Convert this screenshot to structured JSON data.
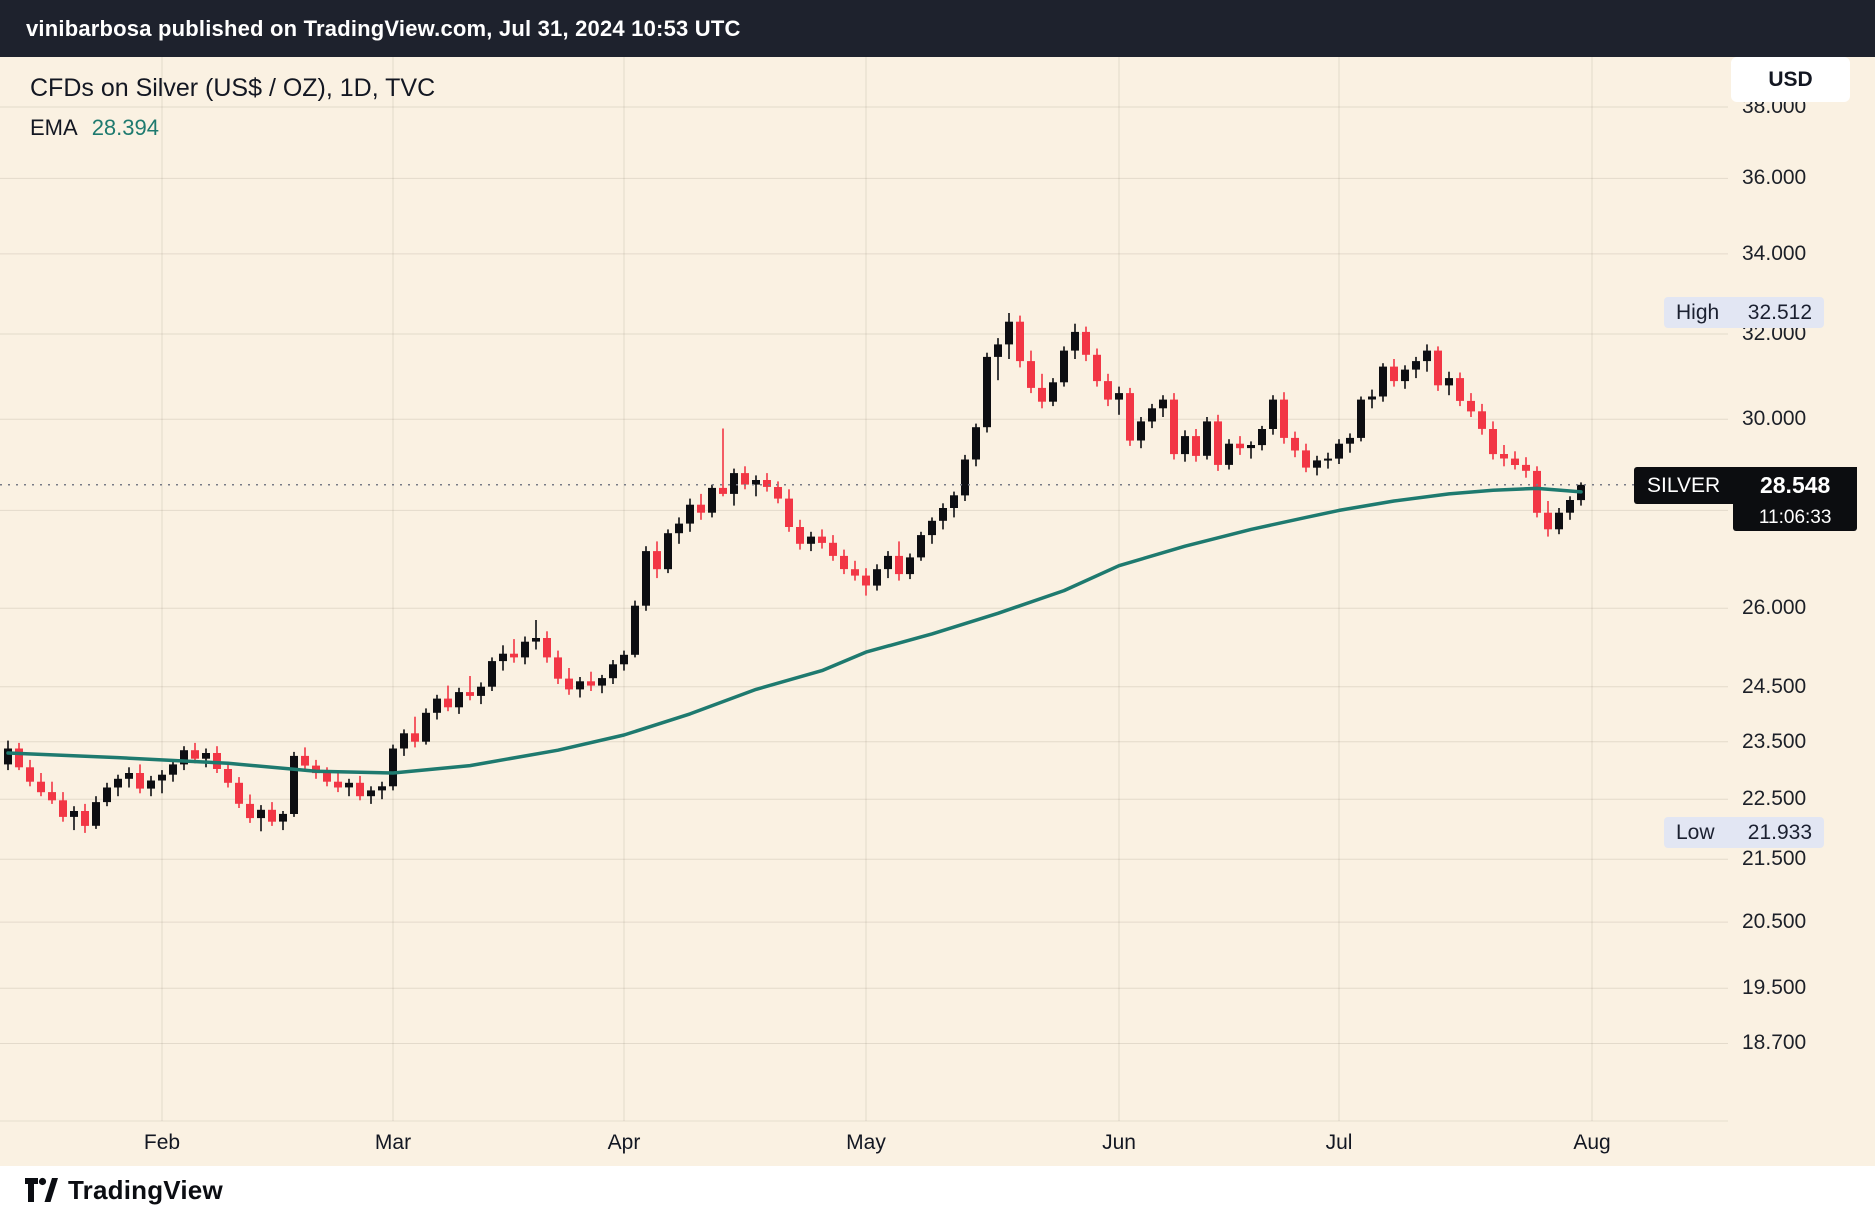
{
  "header": {
    "published_line": "vinibarbosa published on TradingView.com, Jul 31, 2024 10:53 UTC"
  },
  "legend": {
    "title": "CFDs on Silver (US$ / OZ), 1D, TVC",
    "indicator": {
      "name": "EMA",
      "value": "28.394"
    }
  },
  "price_axis": {
    "currency_button": "USD"
  },
  "badges": {
    "high": {
      "label": "High",
      "value": "32.512",
      "price": 32.512
    },
    "low": {
      "label": "Low",
      "value": "21.933",
      "price": 21.933
    },
    "last": {
      "symbol": "SILVER",
      "value": "28.548",
      "price": 28.548,
      "countdown": "11:06:33"
    }
  },
  "time_axis": {
    "months": [
      {
        "label": "Feb",
        "index": 14
      },
      {
        "label": "Mar",
        "index": 35
      },
      {
        "label": "Apr",
        "index": 56
      },
      {
        "label": "May",
        "index": 78
      },
      {
        "label": "Jun",
        "index": 101
      },
      {
        "label": "Jul",
        "index": 121
      },
      {
        "label": "Aug",
        "index": 144
      }
    ]
  },
  "footer": {
    "brand": "TradingView"
  },
  "theme": {
    "background": "#faf1e2",
    "topbar_bg": "#1e222d",
    "footer_bg": "#ffffff",
    "badge_bg": "#e2e6f3",
    "axis_text": "#1c2028"
  },
  "chart_data": {
    "type": "candlestick",
    "title": "CFDs on Silver (US$ / OZ), 1D, TVC",
    "symbol": "SILVER",
    "exchange": "TVC",
    "timeframe": "1D",
    "scale": "log",
    "ylim": [
      17.6,
      39.5
    ],
    "high": 32.512,
    "low": 21.933,
    "last_close": 28.548,
    "ema_last": 28.394,
    "price_gridlines": [
      38,
      36,
      34,
      32,
      30,
      28,
      26,
      24.5,
      23.5,
      22.5,
      21.5,
      20.5,
      19.5,
      18.7
    ],
    "colors": {
      "up": "#0d0e12",
      "down": "#f23645",
      "ema": "#1e7a6f",
      "last_price_line": "#787b86"
    },
    "candles": [
      [
        23.1,
        23.52,
        23.0,
        23.38
      ],
      [
        23.38,
        23.48,
        23.0,
        23.05
      ],
      [
        23.05,
        23.18,
        22.72,
        22.8
      ],
      [
        22.8,
        22.95,
        22.55,
        22.62
      ],
      [
        22.62,
        22.8,
        22.42,
        22.48
      ],
      [
        22.48,
        22.62,
        22.12,
        22.2
      ],
      [
        22.2,
        22.38,
        21.98,
        22.3
      ],
      [
        22.3,
        22.42,
        21.933,
        22.05
      ],
      [
        22.05,
        22.55,
        22.0,
        22.45
      ],
      [
        22.45,
        22.78,
        22.38,
        22.7
      ],
      [
        22.7,
        22.92,
        22.55,
        22.85
      ],
      [
        22.85,
        23.05,
        22.7,
        22.95
      ],
      [
        22.95,
        23.1,
        22.6,
        22.68
      ],
      [
        22.68,
        22.9,
        22.55,
        22.82
      ],
      [
        22.82,
        23.0,
        22.6,
        22.92
      ],
      [
        22.92,
        23.15,
        22.8,
        23.1
      ],
      [
        23.1,
        23.42,
        23.0,
        23.35
      ],
      [
        23.35,
        23.48,
        23.12,
        23.2
      ],
      [
        23.2,
        23.38,
        23.05,
        23.3
      ],
      [
        23.3,
        23.42,
        22.95,
        23.02
      ],
      [
        23.02,
        23.12,
        22.7,
        22.78
      ],
      [
        22.78,
        22.88,
        22.35,
        22.42
      ],
      [
        22.42,
        22.58,
        22.1,
        22.18
      ],
      [
        22.18,
        22.4,
        21.96,
        22.32
      ],
      [
        22.32,
        22.45,
        22.05,
        22.12
      ],
      [
        22.12,
        22.3,
        21.98,
        22.25
      ],
      [
        22.25,
        23.32,
        22.2,
        23.25
      ],
      [
        23.25,
        23.4,
        23.0,
        23.08
      ],
      [
        23.08,
        23.18,
        22.85,
        22.95
      ],
      [
        22.95,
        23.05,
        22.72,
        22.8
      ],
      [
        22.8,
        22.95,
        22.62,
        22.7
      ],
      [
        22.7,
        22.85,
        22.55,
        22.78
      ],
      [
        22.78,
        22.9,
        22.48,
        22.55
      ],
      [
        22.55,
        22.72,
        22.42,
        22.65
      ],
      [
        22.65,
        22.8,
        22.5,
        22.72
      ],
      [
        22.72,
        23.45,
        22.65,
        23.38
      ],
      [
        23.38,
        23.72,
        23.25,
        23.65
      ],
      [
        23.65,
        23.95,
        23.4,
        23.5
      ],
      [
        23.5,
        24.1,
        23.45,
        24.02
      ],
      [
        24.02,
        24.35,
        23.9,
        24.28
      ],
      [
        24.28,
        24.52,
        24.05,
        24.12
      ],
      [
        24.12,
        24.48,
        24.0,
        24.4
      ],
      [
        24.4,
        24.7,
        24.25,
        24.33
      ],
      [
        24.33,
        24.58,
        24.18,
        24.5
      ],
      [
        24.5,
        25.05,
        24.42,
        24.98
      ],
      [
        24.98,
        25.28,
        24.8,
        25.12
      ],
      [
        25.12,
        25.4,
        24.95,
        25.05
      ],
      [
        25.05,
        25.45,
        24.92,
        25.35
      ],
      [
        25.35,
        25.77,
        25.2,
        25.42
      ],
      [
        25.42,
        25.55,
        24.95,
        25.05
      ],
      [
        25.05,
        25.18,
        24.55,
        24.65
      ],
      [
        24.65,
        24.85,
        24.35,
        24.45
      ],
      [
        24.45,
        24.68,
        24.3,
        24.6
      ],
      [
        24.6,
        24.78,
        24.42,
        24.52
      ],
      [
        24.52,
        24.72,
        24.38,
        24.66
      ],
      [
        24.66,
        25.0,
        24.55,
        24.92
      ],
      [
        24.92,
        25.18,
        24.8,
        25.1
      ],
      [
        25.1,
        26.15,
        25.05,
        26.05
      ],
      [
        26.05,
        27.25,
        25.95,
        27.15
      ],
      [
        27.15,
        27.35,
        26.6,
        26.78
      ],
      [
        26.78,
        27.6,
        26.7,
        27.52
      ],
      [
        27.52,
        27.85,
        27.3,
        27.72
      ],
      [
        27.72,
        28.25,
        27.55,
        28.12
      ],
      [
        28.12,
        28.35,
        27.8,
        27.95
      ],
      [
        27.95,
        28.55,
        27.85,
        28.48
      ],
      [
        28.48,
        29.79,
        28.3,
        28.35
      ],
      [
        28.35,
        28.9,
        28.1,
        28.8
      ],
      [
        28.8,
        28.95,
        28.45,
        28.55
      ],
      [
        28.55,
        28.75,
        28.3,
        28.65
      ],
      [
        28.65,
        28.8,
        28.4,
        28.5
      ],
      [
        28.5,
        28.62,
        28.15,
        28.25
      ],
      [
        28.25,
        28.45,
        27.55,
        27.65
      ],
      [
        27.65,
        27.8,
        27.18,
        27.3
      ],
      [
        27.3,
        27.55,
        27.15,
        27.45
      ],
      [
        27.45,
        27.6,
        27.2,
        27.32
      ],
      [
        27.32,
        27.48,
        26.95,
        27.05
      ],
      [
        27.05,
        27.18,
        26.68,
        26.78
      ],
      [
        26.78,
        26.95,
        26.55,
        26.65
      ],
      [
        26.65,
        26.8,
        26.25,
        26.45
      ],
      [
        26.45,
        26.88,
        26.35,
        26.78
      ],
      [
        26.78,
        27.15,
        26.6,
        27.05
      ],
      [
        27.05,
        27.35,
        26.55,
        26.68
      ],
      [
        26.68,
        27.1,
        26.58,
        27.02
      ],
      [
        27.02,
        27.55,
        26.95,
        27.48
      ],
      [
        27.48,
        27.85,
        27.3,
        27.78
      ],
      [
        27.78,
        28.15,
        27.6,
        28.05
      ],
      [
        28.05,
        28.4,
        27.85,
        28.32
      ],
      [
        28.32,
        29.2,
        28.2,
        29.1
      ],
      [
        29.1,
        29.9,
        28.95,
        29.82
      ],
      [
        29.82,
        31.55,
        29.7,
        31.45
      ],
      [
        31.45,
        31.9,
        30.9,
        31.75
      ],
      [
        31.75,
        32.512,
        31.4,
        32.3
      ],
      [
        32.3,
        32.45,
        31.2,
        31.35
      ],
      [
        31.35,
        31.6,
        30.6,
        30.72
      ],
      [
        30.72,
        31.05,
        30.25,
        30.4
      ],
      [
        30.4,
        30.95,
        30.3,
        30.85
      ],
      [
        30.85,
        31.7,
        30.75,
        31.6
      ],
      [
        31.6,
        32.25,
        31.4,
        32.05
      ],
      [
        32.05,
        32.18,
        31.35,
        31.5
      ],
      [
        31.5,
        31.65,
        30.75,
        30.88
      ],
      [
        30.88,
        31.05,
        30.3,
        30.45
      ],
      [
        30.45,
        30.75,
        30.1,
        30.6
      ],
      [
        30.6,
        30.72,
        29.4,
        29.52
      ],
      [
        29.52,
        30.05,
        29.35,
        29.95
      ],
      [
        29.95,
        30.35,
        29.8,
        30.25
      ],
      [
        30.25,
        30.55,
        30.05,
        30.45
      ],
      [
        30.45,
        30.6,
        29.1,
        29.22
      ],
      [
        29.22,
        29.75,
        29.05,
        29.62
      ],
      [
        29.62,
        29.78,
        29.05,
        29.18
      ],
      [
        29.18,
        30.05,
        29.1,
        29.95
      ],
      [
        29.95,
        30.1,
        28.85,
        28.98
      ],
      [
        28.98,
        29.55,
        28.88,
        29.45
      ],
      [
        29.45,
        29.62,
        29.2,
        29.35
      ],
      [
        29.35,
        29.5,
        29.12,
        29.42
      ],
      [
        29.42,
        29.85,
        29.3,
        29.78
      ],
      [
        29.78,
        30.55,
        29.65,
        30.45
      ],
      [
        30.45,
        30.62,
        29.45,
        29.58
      ],
      [
        29.58,
        29.72,
        29.15,
        29.3
      ],
      [
        29.3,
        29.45,
        28.82,
        28.92
      ],
      [
        28.92,
        29.18,
        28.75,
        29.08
      ],
      [
        29.08,
        29.25,
        28.9,
        29.12
      ],
      [
        29.12,
        29.55,
        29.0,
        29.45
      ],
      [
        29.45,
        29.68,
        29.25,
        29.58
      ],
      [
        29.58,
        30.52,
        29.5,
        30.45
      ],
      [
        30.45,
        30.68,
        30.25,
        30.52
      ],
      [
        30.52,
        31.3,
        30.4,
        31.22
      ],
      [
        31.22,
        31.4,
        30.75,
        30.88
      ],
      [
        30.88,
        31.25,
        30.7,
        31.15
      ],
      [
        31.15,
        31.45,
        30.95,
        31.35
      ],
      [
        31.35,
        31.75,
        31.1,
        31.6
      ],
      [
        31.6,
        31.7,
        30.65,
        30.78
      ],
      [
        30.78,
        31.1,
        30.55,
        30.95
      ],
      [
        30.95,
        31.08,
        30.3,
        30.42
      ],
      [
        30.42,
        30.6,
        30.05,
        30.18
      ],
      [
        30.18,
        30.35,
        29.65,
        29.78
      ],
      [
        29.78,
        29.95,
        29.1,
        29.22
      ],
      [
        29.22,
        29.42,
        28.95,
        29.12
      ],
      [
        29.12,
        29.28,
        28.88,
        28.98
      ],
      [
        28.98,
        29.15,
        28.7,
        28.85
      ],
      [
        28.85,
        28.95,
        27.85,
        27.95
      ],
      [
        27.95,
        28.2,
        27.45,
        27.6
      ],
      [
        27.6,
        28.05,
        27.5,
        27.95
      ],
      [
        27.95,
        28.3,
        27.8,
        28.22
      ],
      [
        28.22,
        28.6,
        28.1,
        28.548
      ]
    ],
    "ema_points": [
      [
        0,
        23.3
      ],
      [
        10,
        23.22
      ],
      [
        20,
        23.12
      ],
      [
        28,
        22.98
      ],
      [
        35,
        22.95
      ],
      [
        42,
        23.08
      ],
      [
        50,
        23.35
      ],
      [
        56,
        23.62
      ],
      [
        62,
        24.0
      ],
      [
        68,
        24.45
      ],
      [
        74,
        24.8
      ],
      [
        78,
        25.15
      ],
      [
        84,
        25.5
      ],
      [
        90,
        25.9
      ],
      [
        96,
        26.35
      ],
      [
        101,
        26.85
      ],
      [
        107,
        27.25
      ],
      [
        113,
        27.6
      ],
      [
        118,
        27.85
      ],
      [
        121,
        28.0
      ],
      [
        126,
        28.2
      ],
      [
        131,
        28.35
      ],
      [
        135,
        28.43
      ],
      [
        139,
        28.47
      ],
      [
        143,
        28.394
      ]
    ]
  }
}
